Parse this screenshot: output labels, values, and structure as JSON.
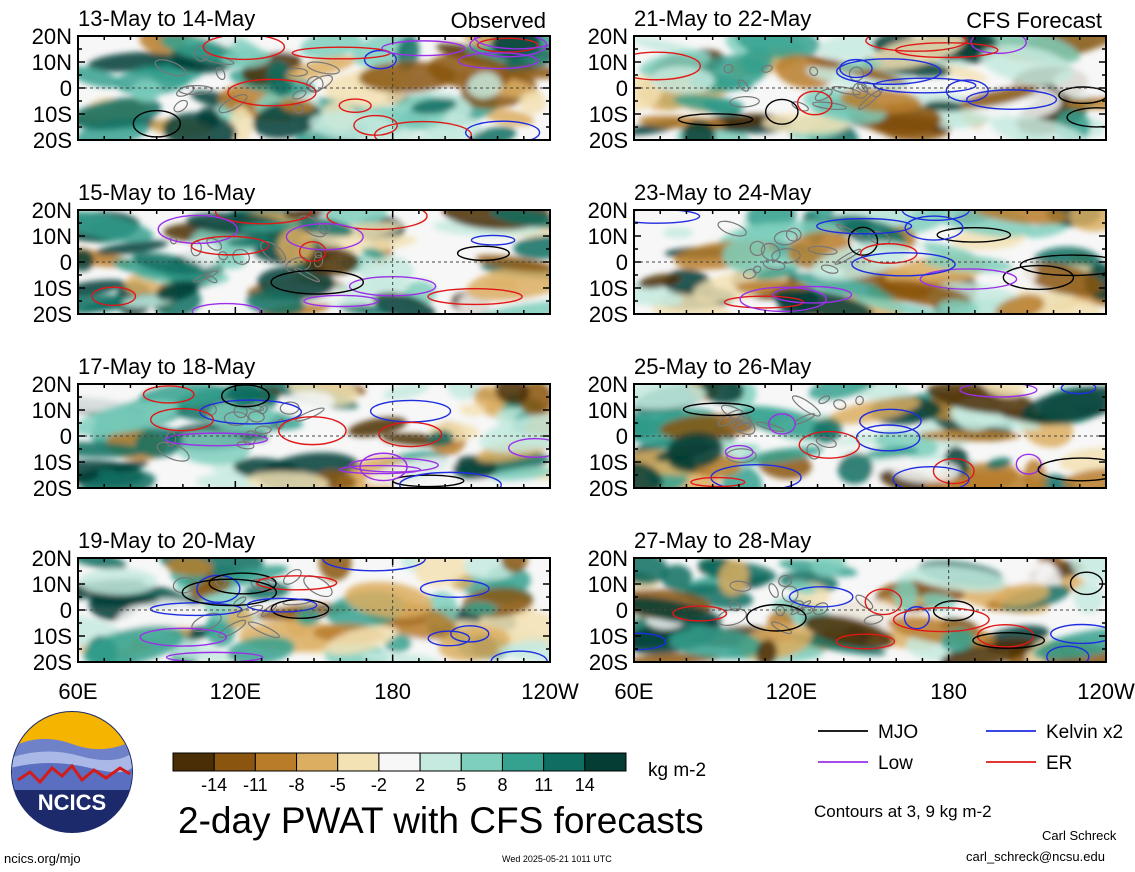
{
  "chart_data": {
    "type": "heatmap",
    "title": "2-day PWAT with CFS forecasts",
    "units": "kg m-2",
    "panels": [
      {
        "period": "13-May to 14-May",
        "tag": "Observed",
        "source": "Observed"
      },
      {
        "period": "15-May to 16-May",
        "tag": "",
        "source": "Observed"
      },
      {
        "period": "17-May to 18-May",
        "tag": "",
        "source": "Observed"
      },
      {
        "period": "19-May to 20-May",
        "tag": "",
        "source": "Observed"
      },
      {
        "period": "21-May to 22-May",
        "tag": "CFS Forecast",
        "source": "CFS Forecast"
      },
      {
        "period": "23-May to 24-May",
        "tag": "",
        "source": "CFS Forecast"
      },
      {
        "period": "25-May to 26-May",
        "tag": "",
        "source": "CFS Forecast"
      },
      {
        "period": "27-May to 28-May",
        "tag": "",
        "source": "CFS Forecast"
      }
    ],
    "lat_ticks": [
      "20N",
      "10N",
      "0",
      "10S",
      "20S"
    ],
    "lat_range": [
      -20,
      20
    ],
    "lon_ticks": [
      "60E",
      "120E",
      "180",
      "120W"
    ],
    "lon_range": [
      60,
      240
    ],
    "colorbar": {
      "levels": [
        "-14",
        "-11",
        "-8",
        "-5",
        "-2",
        "2",
        "5",
        "8",
        "11",
        "14"
      ],
      "colors": [
        "#4a2e05",
        "#8a560f",
        "#b97d2a",
        "#dcae62",
        "#f3e2b4",
        "#f7f7f7",
        "#c6eadf",
        "#7fcfbd",
        "#35a18f",
        "#0f6e62",
        "#053d35"
      ]
    },
    "legend": [
      {
        "label": "MJO",
        "color": "#000000"
      },
      {
        "label": "Kelvin x2",
        "color": "#1f2de0"
      },
      {
        "label": "Low",
        "color": "#9b30e8"
      },
      {
        "label": "ER",
        "color": "#e01818"
      }
    ],
    "contour_note": "Contours at 3, 9 kg m-2"
  },
  "footer": {
    "logo_text": "NCICS",
    "url": "ncics.org/mjo",
    "timestamp": "Wed 2025-05-21 1011 UTC",
    "author": "Carl Schreck",
    "email": "carl_schreck@ncsu.edu"
  }
}
